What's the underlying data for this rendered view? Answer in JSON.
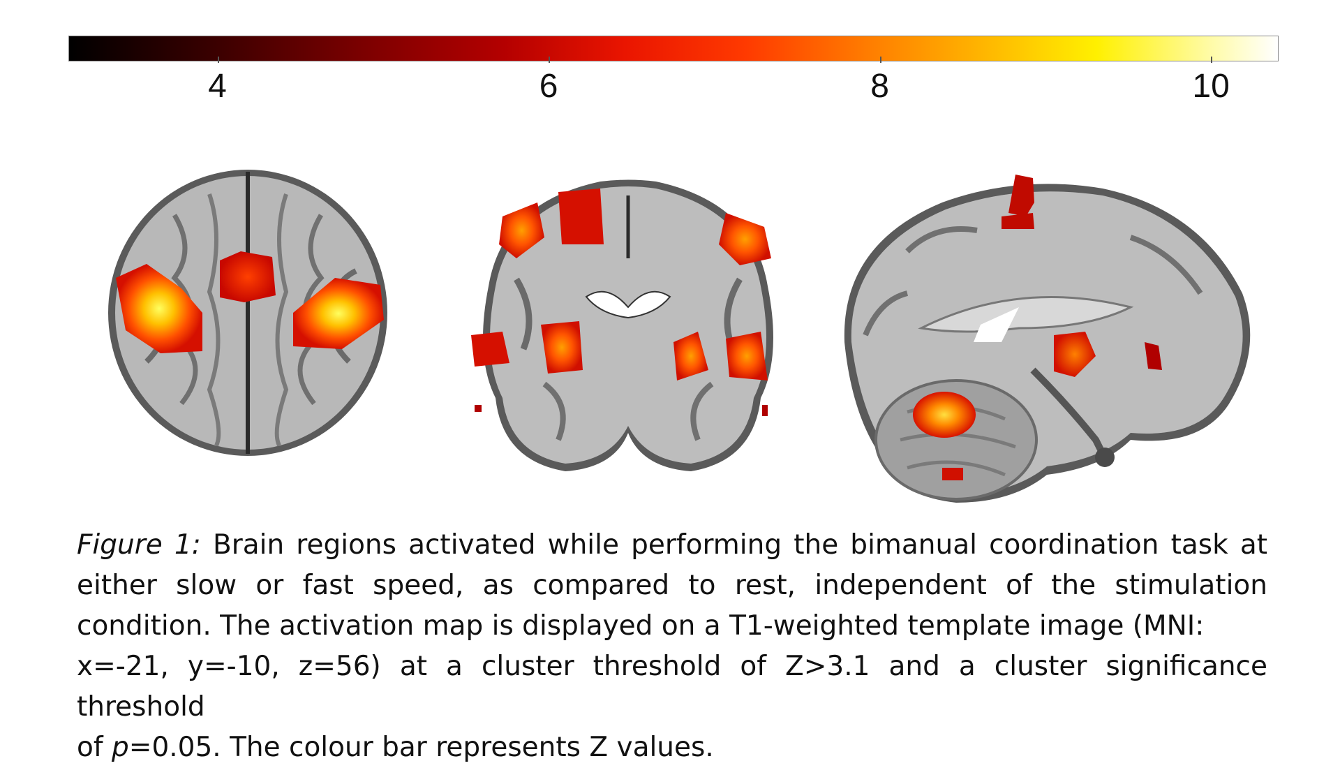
{
  "colorbar": {
    "ticks": [
      {
        "label": "4",
        "value": 4
      },
      {
        "label": "6",
        "value": 6
      },
      {
        "label": "8",
        "value": 8
      },
      {
        "label": "10",
        "value": 10
      }
    ],
    "min": 3.1,
    "max": 10.4,
    "colors": [
      "#000000",
      "#7a0000",
      "#ea1500",
      "#ff7c00",
      "#fff000",
      "#ffffff"
    ]
  },
  "views": [
    "axial",
    "coronal",
    "sagittal"
  ],
  "caption": {
    "figure_label": "Figure 1:",
    "text_part1": " Brain regions activated while performing the bimanual coordination task at either slow or fast speed, as compared to rest, independent of the stimulation",
    "line3": "condition. The activation map is displayed on a T1-weighted template image (MNI:",
    "text_part4": "x=-21, y=-10, z=56) at a cluster threshold of Z>3.1 and a cluster significance threshold",
    "of_prefix": "of ",
    "p_symbol": "p",
    "text_part5": "=0.05. The colour bar represents Z values."
  }
}
